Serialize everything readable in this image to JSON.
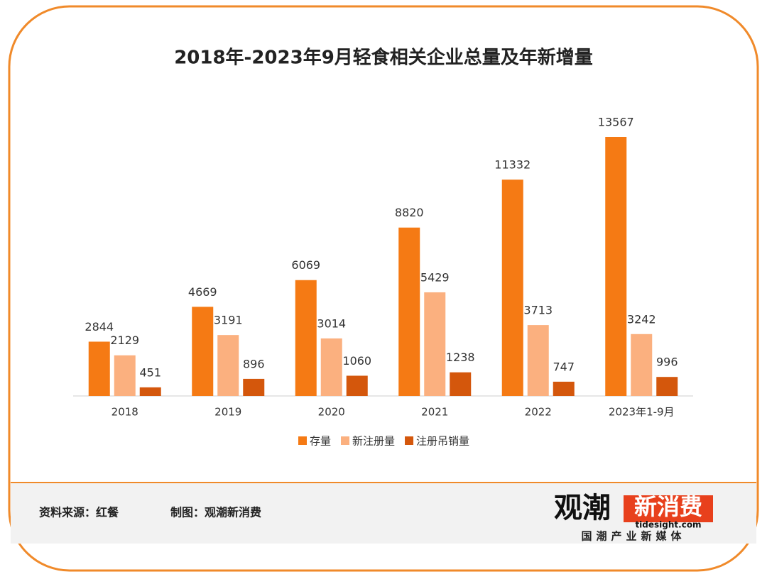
{
  "chart_data": {
    "type": "bar",
    "title": "2018年-2023年9月轻食相关企业总量及年新增量",
    "categories": [
      "2018",
      "2019",
      "2020",
      "2021",
      "2022",
      "2023年1-9月"
    ],
    "series": [
      {
        "name": "存量",
        "color": "#f57a14",
        "values": [
          2844,
          4669,
          6069,
          8820,
          11332,
          13567
        ]
      },
      {
        "name": "新注册量",
        "color": "#fbb07f",
        "values": [
          2129,
          3191,
          3014,
          5429,
          3713,
          3242
        ]
      },
      {
        "name": "注册吊销量",
        "color": "#d4570c",
        "values": [
          451,
          896,
          1060,
          1238,
          747,
          996
        ]
      }
    ],
    "legend": "bottom"
  },
  "footer": {
    "source": "资料来源：红餐",
    "credit": "制图：观潮新消费"
  },
  "logo": {
    "name_a": "观潮",
    "name_b": "新消费",
    "url": "tidesight.com",
    "tagline": "国潮产业新媒体"
  }
}
